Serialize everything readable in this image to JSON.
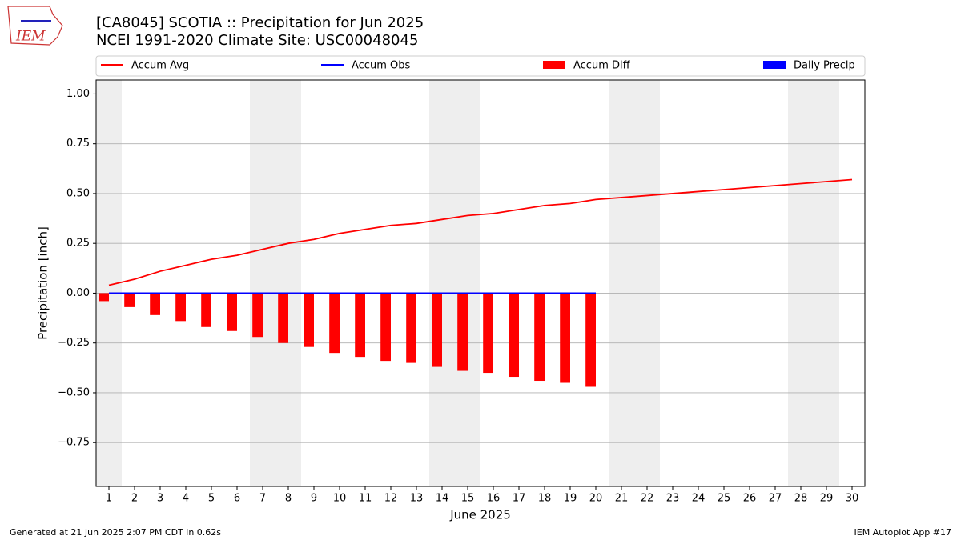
{
  "chart_data": {
    "type": "combo",
    "title": "[CA8045] SCOTIA :: Precipitation for Jun 2025",
    "subtitle": "NCEI 1991-2020 Climate Site: USC00048045",
    "logo_text": "IEM",
    "xlabel": "June 2025",
    "ylabel": "Precipitation [inch]",
    "footer_left": "Generated at 21 Jun 2025 2:07 PM CDT in 0.62s",
    "footer_right": "IEM Autoplot App #17",
    "x": [
      1,
      2,
      3,
      4,
      5,
      6,
      7,
      8,
      9,
      10,
      11,
      12,
      13,
      14,
      15,
      16,
      17,
      18,
      19,
      20,
      21,
      22,
      23,
      24,
      25,
      26,
      27,
      28,
      29,
      30
    ],
    "xlim": [
      0.5,
      30.5
    ],
    "xticks": [
      1,
      2,
      3,
      4,
      5,
      6,
      7,
      8,
      9,
      10,
      11,
      12,
      13,
      14,
      15,
      16,
      17,
      18,
      19,
      20,
      21,
      22,
      23,
      24,
      25,
      26,
      27,
      28,
      29,
      30
    ],
    "ylim": [
      -0.97,
      1.07
    ],
    "yticks": [
      {
        "value": -0.75,
        "label": "−0.75"
      },
      {
        "value": -0.5,
        "label": "−0.50"
      },
      {
        "value": -0.25,
        "label": "−0.25"
      },
      {
        "value": 0,
        "label": "0.00"
      },
      {
        "value": 0.25,
        "label": "0.25"
      },
      {
        "value": 0.5,
        "label": "0.50"
      },
      {
        "value": 0.75,
        "label": "0.75"
      },
      {
        "value": 1,
        "label": "1.00"
      }
    ],
    "grid": true,
    "shade_days": [
      1,
      7,
      8,
      14,
      15,
      21,
      22,
      28,
      29
    ],
    "series": [
      {
        "name": "Accum Avg",
        "kind": "line",
        "color": "#ff0000",
        "values": [
          0.04,
          0.07,
          0.11,
          0.14,
          0.17,
          0.19,
          0.22,
          0.25,
          0.27,
          0.3,
          0.32,
          0.34,
          0.35,
          0.37,
          0.39,
          0.4,
          0.42,
          0.44,
          0.45,
          0.47,
          0.48,
          0.49,
          0.5,
          0.51,
          0.52,
          0.53,
          0.54,
          0.55,
          0.56,
          0.57
        ]
      },
      {
        "name": "Accum Obs",
        "kind": "line",
        "color": "#0000ff",
        "values": [
          0,
          0,
          0,
          0,
          0,
          0,
          0,
          0,
          0,
          0,
          0,
          0,
          0,
          0,
          0,
          0,
          0,
          0,
          0,
          0,
          null,
          null,
          null,
          null,
          null,
          null,
          null,
          null,
          null,
          null
        ]
      },
      {
        "name": "Accum Diff",
        "kind": "bar",
        "color": "#ff0000",
        "values": [
          -0.04,
          -0.07,
          -0.11,
          -0.14,
          -0.17,
          -0.19,
          -0.22,
          -0.25,
          -0.27,
          -0.3,
          -0.32,
          -0.34,
          -0.35,
          -0.37,
          -0.39,
          -0.4,
          -0.42,
          -0.44,
          -0.45,
          -0.47,
          null,
          null,
          null,
          null,
          null,
          null,
          null,
          null,
          null,
          null
        ]
      },
      {
        "name": "Daily Precip",
        "kind": "bar",
        "color": "#0000ff",
        "values": [
          0,
          0,
          0,
          0,
          0,
          0,
          0,
          0,
          0,
          0,
          0,
          0,
          0,
          0,
          0,
          0,
          0,
          0,
          0,
          0,
          null,
          null,
          null,
          null,
          null,
          null,
          null,
          null,
          null,
          null
        ]
      }
    ]
  }
}
